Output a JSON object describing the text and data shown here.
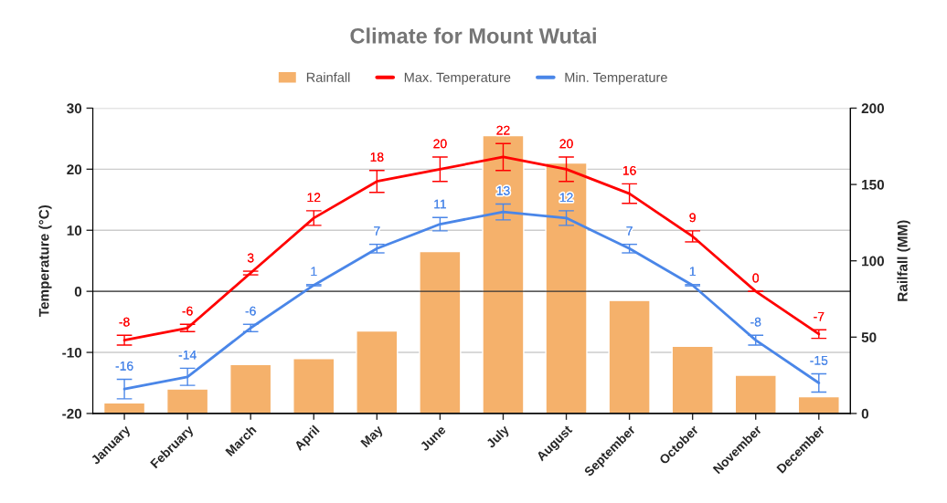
{
  "chart_data": {
    "type": "bar",
    "title": "Climate for Mount Wutai",
    "ylabel": "Temperature (°C)",
    "y2label": "Railfall (MM)",
    "categories": [
      "January",
      "February",
      "March",
      "April",
      "May",
      "June",
      "July",
      "August",
      "September",
      "October",
      "November",
      "December"
    ],
    "series": [
      {
        "name": "Rainfall",
        "type": "bar",
        "axis": "y2",
        "color": "#f5b16b",
        "values": [
          7,
          16,
          32,
          36,
          54,
          106,
          182,
          164,
          74,
          44,
          25,
          11
        ]
      },
      {
        "name": "Max. Temperature",
        "type": "line",
        "color": "#ff0000",
        "values": [
          -8,
          -6,
          3,
          12,
          18,
          20,
          22,
          20,
          16,
          9,
          0,
          -7
        ],
        "errors": [
          0.8,
          0.6,
          0.3,
          1.2,
          1.8,
          2,
          2.2,
          2,
          1.6,
          0.9,
          0,
          0.7
        ],
        "data_labels": true
      },
      {
        "name": "Min. Temperature",
        "type": "line",
        "color": "#4a86e8",
        "values": [
          -16,
          -14,
          -6,
          1,
          7,
          11,
          13,
          12,
          7,
          1,
          -8,
          -15
        ],
        "errors": [
          1.6,
          1.4,
          0.6,
          0.1,
          0.7,
          1.1,
          1.3,
          1.2,
          0.7,
          0.1,
          0.8,
          1.5
        ],
        "data_labels": true
      }
    ],
    "ylim": [
      -20,
      30
    ],
    "yticks": [
      -20,
      -10,
      0,
      10,
      20,
      30
    ],
    "y2lim": [
      0,
      200
    ],
    "y2ticks": [
      0,
      50,
      100,
      150,
      200
    ],
    "ref_lines": [
      {
        "axis": "y",
        "value": 0,
        "color": "#333333"
      }
    ],
    "grid": "y",
    "legend": "top",
    "marker": "none",
    "line_style": "solid"
  }
}
